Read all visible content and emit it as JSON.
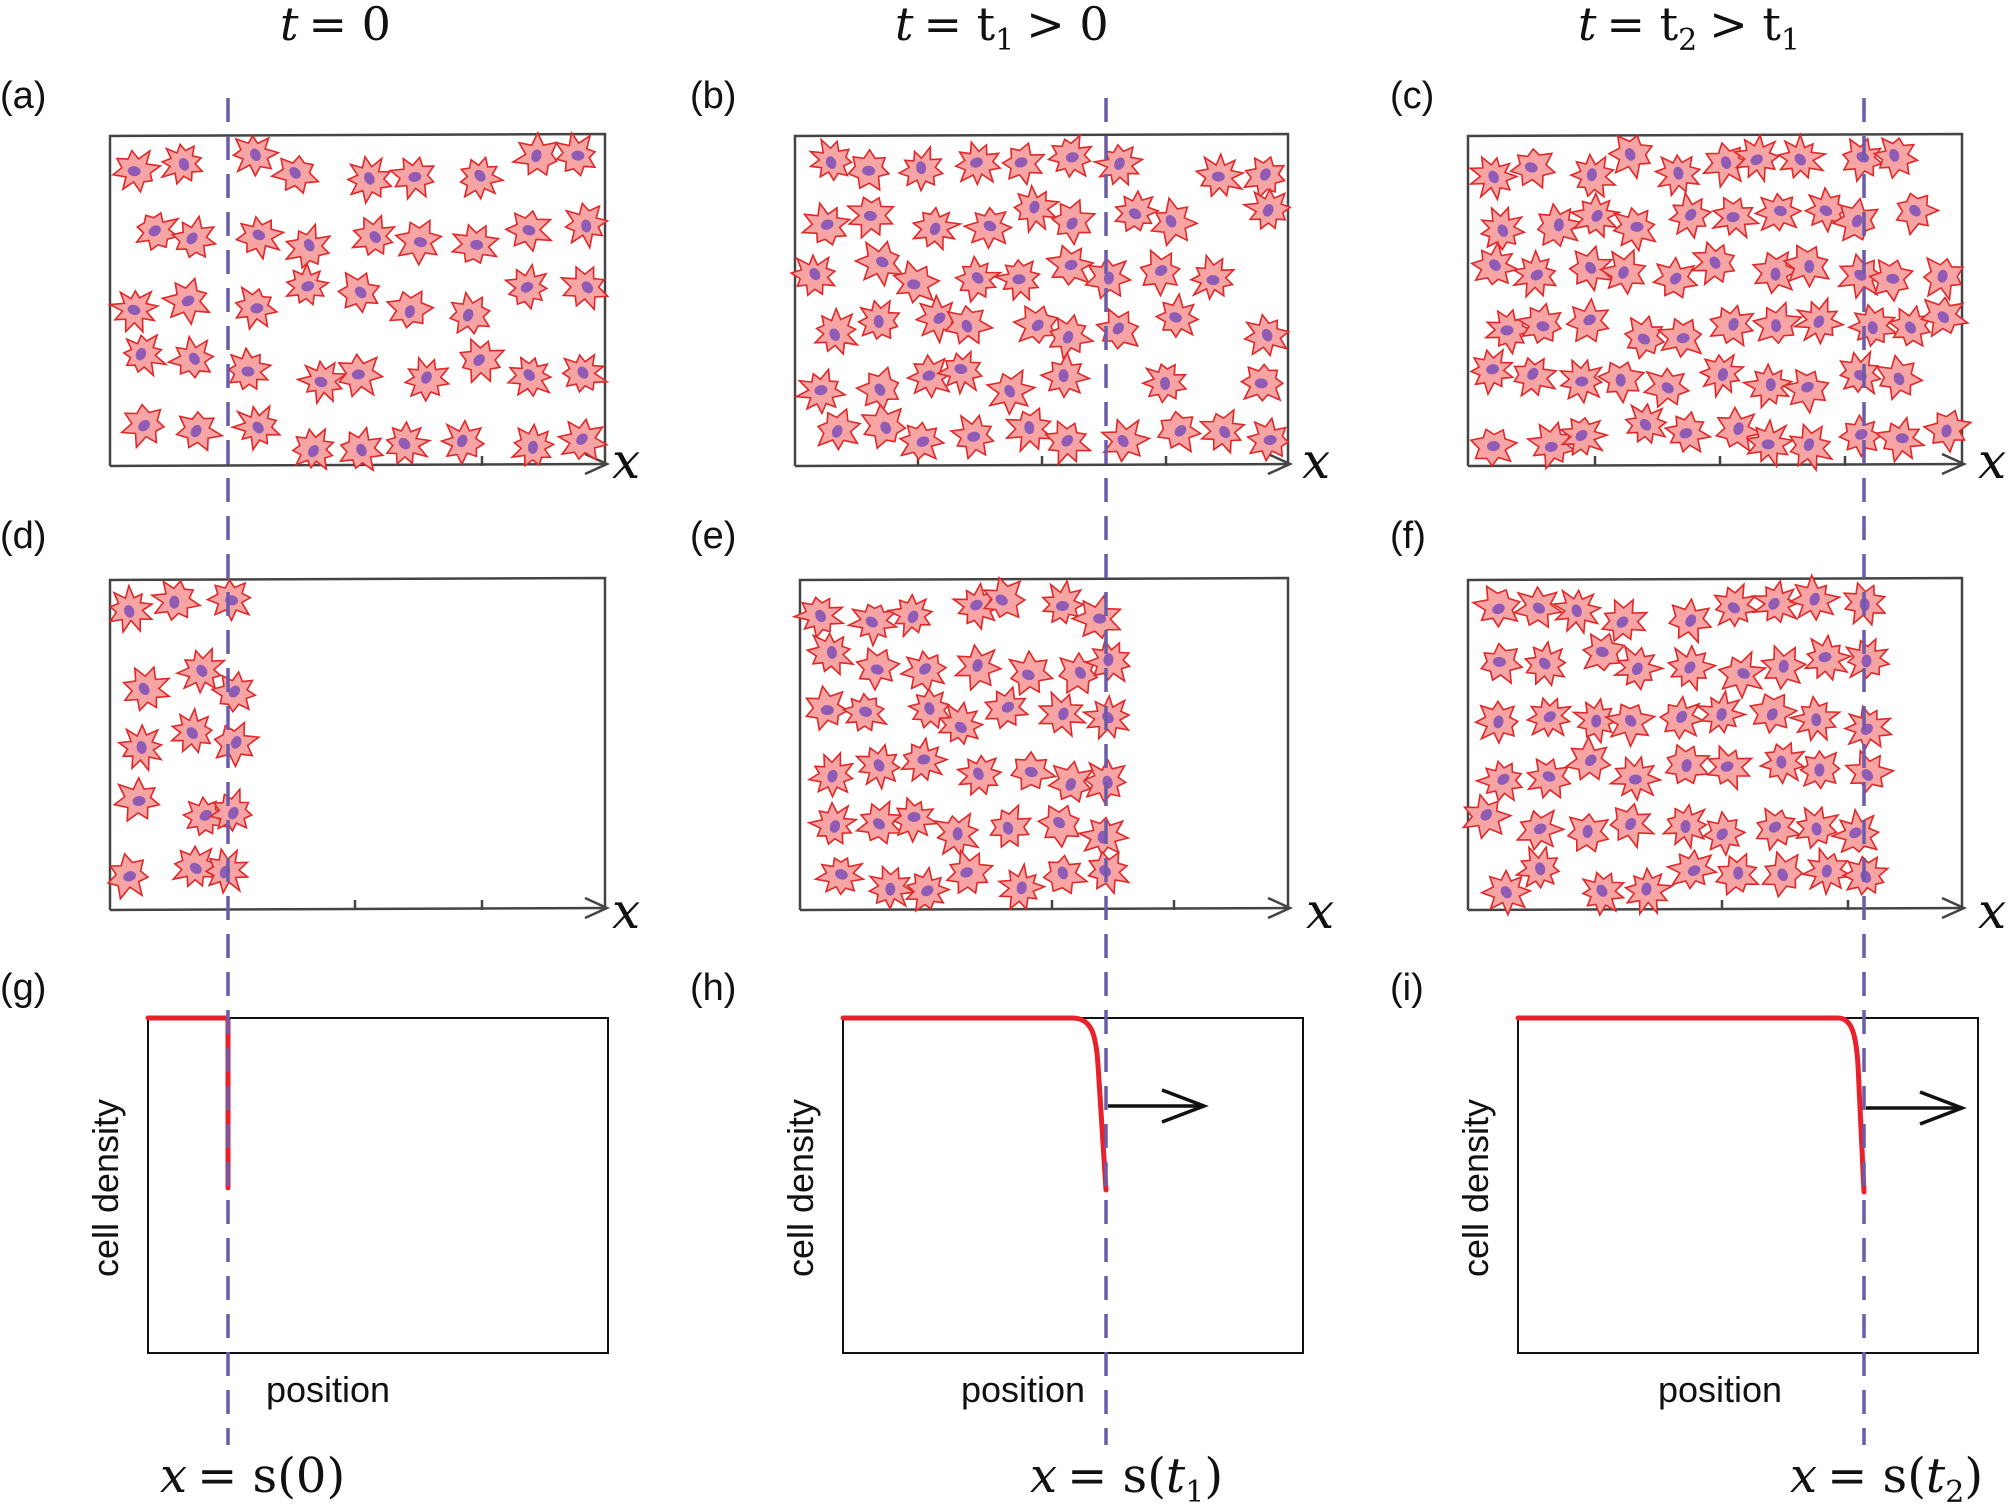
{
  "column_headers": [
    {
      "var": "t",
      "rest": "= 0"
    },
    {
      "var": "t",
      "mid": "= t",
      "sub": "1",
      "rest": "> 0"
    },
    {
      "var": "t",
      "mid": "= t",
      "sub": "2",
      "rest": "> t",
      "sub2": "1"
    }
  ],
  "panel_labels": [
    "(a)",
    "(b)",
    "(c)",
    "(d)",
    "(e)",
    "(f)",
    "(g)",
    "(h)",
    "(i)"
  ],
  "axis_symbol": "x",
  "density_plot": {
    "ylabel": "cell density",
    "xlabel": "position"
  },
  "front_labels": [
    {
      "lhs": "x",
      "eq": "= s(",
      "arg": "0",
      "sub": "",
      "close": ")"
    },
    {
      "lhs": "x",
      "eq": "= s(",
      "arg": "t",
      "sub": "1",
      "close": ")"
    },
    {
      "lhs": "x",
      "eq": "= s(",
      "arg": "t",
      "sub": "2",
      "close": ")"
    }
  ],
  "colors": {
    "cell_fill": "#f6a4a4",
    "cell_outline": "#e02828",
    "nucleus": "#8f5bb5",
    "front_line": "#6c5ba8",
    "density_curve": "#e8212a"
  }
}
